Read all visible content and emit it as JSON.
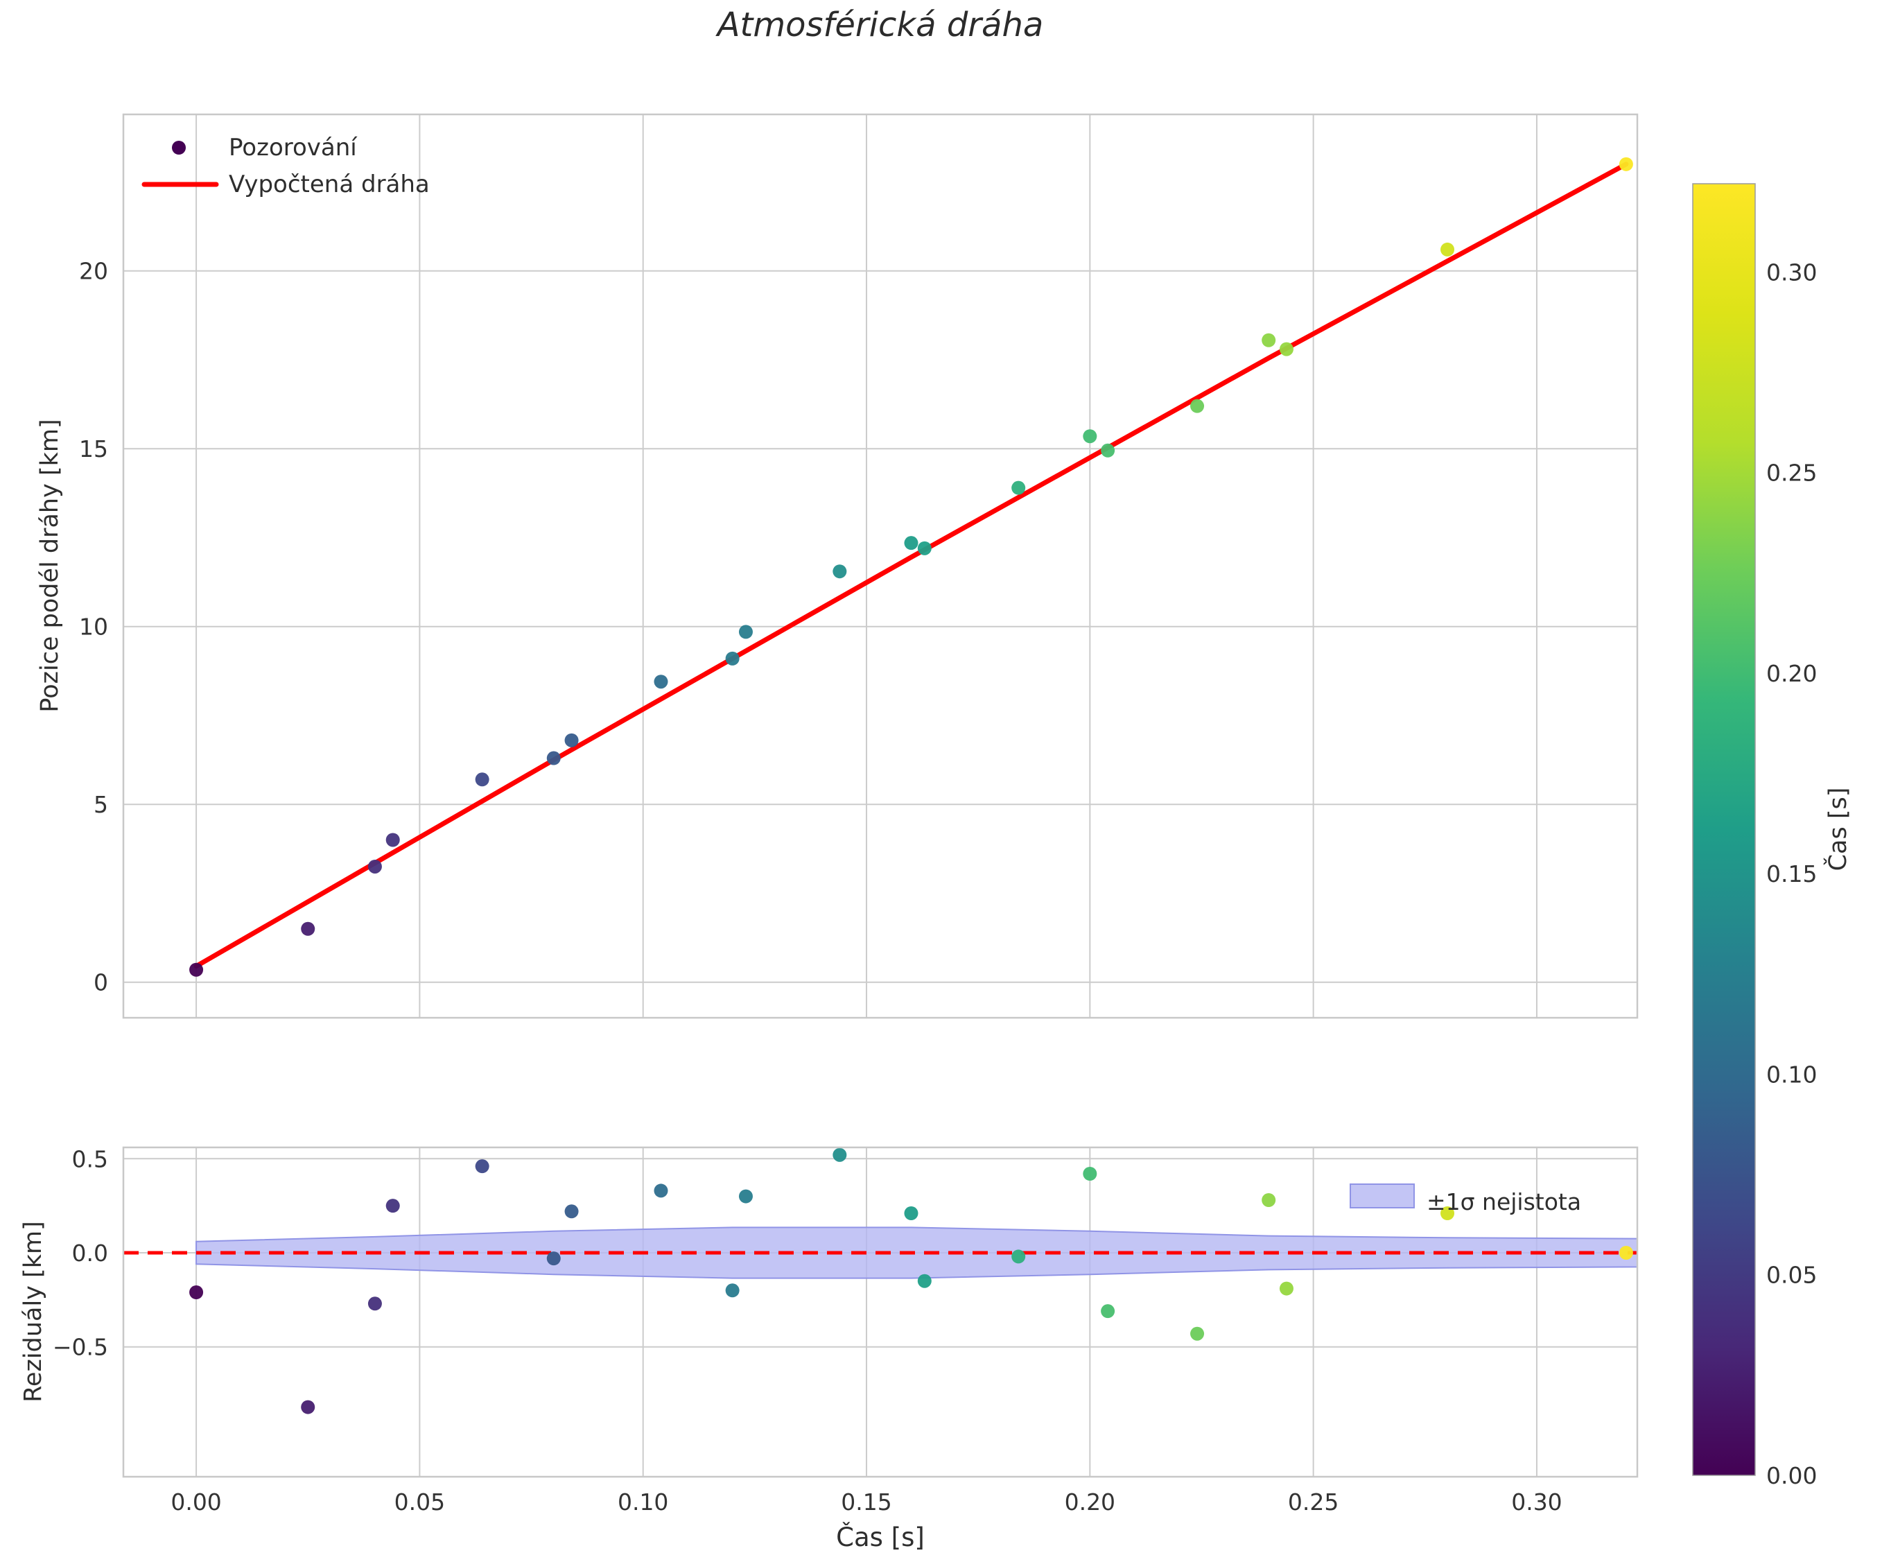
{
  "chart_data": {
    "type": "scatter",
    "title": "Atmosférická dráha",
    "colormap": "viridis",
    "xlim": [
      -0.0163,
      0.3225
    ],
    "xticks": [
      0.0,
      0.05,
      0.1,
      0.15,
      0.2,
      0.25,
      0.3
    ],
    "main": {
      "ylabel": "Pozice podél dráhy [km]",
      "ylim": [
        -1.0,
        24.4
      ],
      "yticks": [
        0,
        5,
        10,
        15,
        20
      ],
      "grid": true,
      "legend_position": "upper-left",
      "legend": [
        {
          "label": "Pozorování",
          "marker": "dot",
          "color": "#440154"
        },
        {
          "label": "Vypočtená dráha",
          "marker": "line",
          "color": "#ff0000"
        }
      ],
      "fit_line": {
        "x": [
          0.0,
          0.08,
          0.16,
          0.24,
          0.32
        ],
        "y": [
          0.45,
          6.25,
          11.95,
          17.55,
          23.0
        ],
        "color": "#ff0000"
      },
      "points": [
        {
          "t": 0.0,
          "y": 0.35,
          "residual": -0.21
        },
        {
          "t": 0.025,
          "y": 1.5,
          "residual": -0.82
        },
        {
          "t": 0.04,
          "y": 3.25,
          "residual": -0.27
        },
        {
          "t": 0.044,
          "y": 4.0,
          "residual": 0.25
        },
        {
          "t": 0.064,
          "y": 5.7,
          "residual": 0.46
        },
        {
          "t": 0.08,
          "y": 6.3,
          "residual": -0.03
        },
        {
          "t": 0.084,
          "y": 6.8,
          "residual": 0.22
        },
        {
          "t": 0.104,
          "y": 8.45,
          "residual": 0.33
        },
        {
          "t": 0.12,
          "y": 9.1,
          "residual": -0.2
        },
        {
          "t": 0.123,
          "y": 9.85,
          "residual": 0.3
        },
        {
          "t": 0.144,
          "y": 11.55,
          "residual": 0.52
        },
        {
          "t": 0.16,
          "y": 12.35,
          "residual": 0.21
        },
        {
          "t": 0.163,
          "y": 12.2,
          "residual": -0.15
        },
        {
          "t": 0.184,
          "y": 13.9,
          "residual": -0.02
        },
        {
          "t": 0.2,
          "y": 15.35,
          "residual": 0.42
        },
        {
          "t": 0.204,
          "y": 14.95,
          "residual": -0.31
        },
        {
          "t": 0.224,
          "y": 16.2,
          "residual": -0.43
        },
        {
          "t": 0.24,
          "y": 18.05,
          "residual": 0.28
        },
        {
          "t": 0.244,
          "y": 17.8,
          "residual": -0.19
        },
        {
          "t": 0.28,
          "y": 20.6,
          "residual": 0.21
        },
        {
          "t": 0.32,
          "y": 23.0,
          "residual": 0.0
        }
      ]
    },
    "residuals": {
      "ylabel": "Reziduály [km]",
      "xlabel": "Čas [s]",
      "ylim": [
        -1.19,
        0.56
      ],
      "yticks": [
        -0.5,
        0.0,
        0.5
      ],
      "grid": true,
      "zero_line_color": "#ff0000",
      "legend_position": "upper-right",
      "band": {
        "label": "±1σ nejistota",
        "fill": "#b4b6f2",
        "edge": "#9094e6",
        "x": [
          0.0,
          0.04,
          0.08,
          0.12,
          0.16,
          0.2,
          0.24,
          0.28,
          0.3225
        ],
        "halfwidth": [
          0.06,
          0.085,
          0.115,
          0.135,
          0.135,
          0.115,
          0.09,
          0.08,
          0.075
        ]
      }
    },
    "colorbar": {
      "label": "Čas [s]",
      "range": [
        0.0,
        0.322
      ],
      "ticks": [
        0.0,
        0.05,
        0.1,
        0.15,
        0.2,
        0.25,
        0.3
      ]
    },
    "colors": {
      "fit_line": "#ff0000",
      "grid": "#cccccc",
      "band_fill": "#b4b6f2"
    }
  }
}
